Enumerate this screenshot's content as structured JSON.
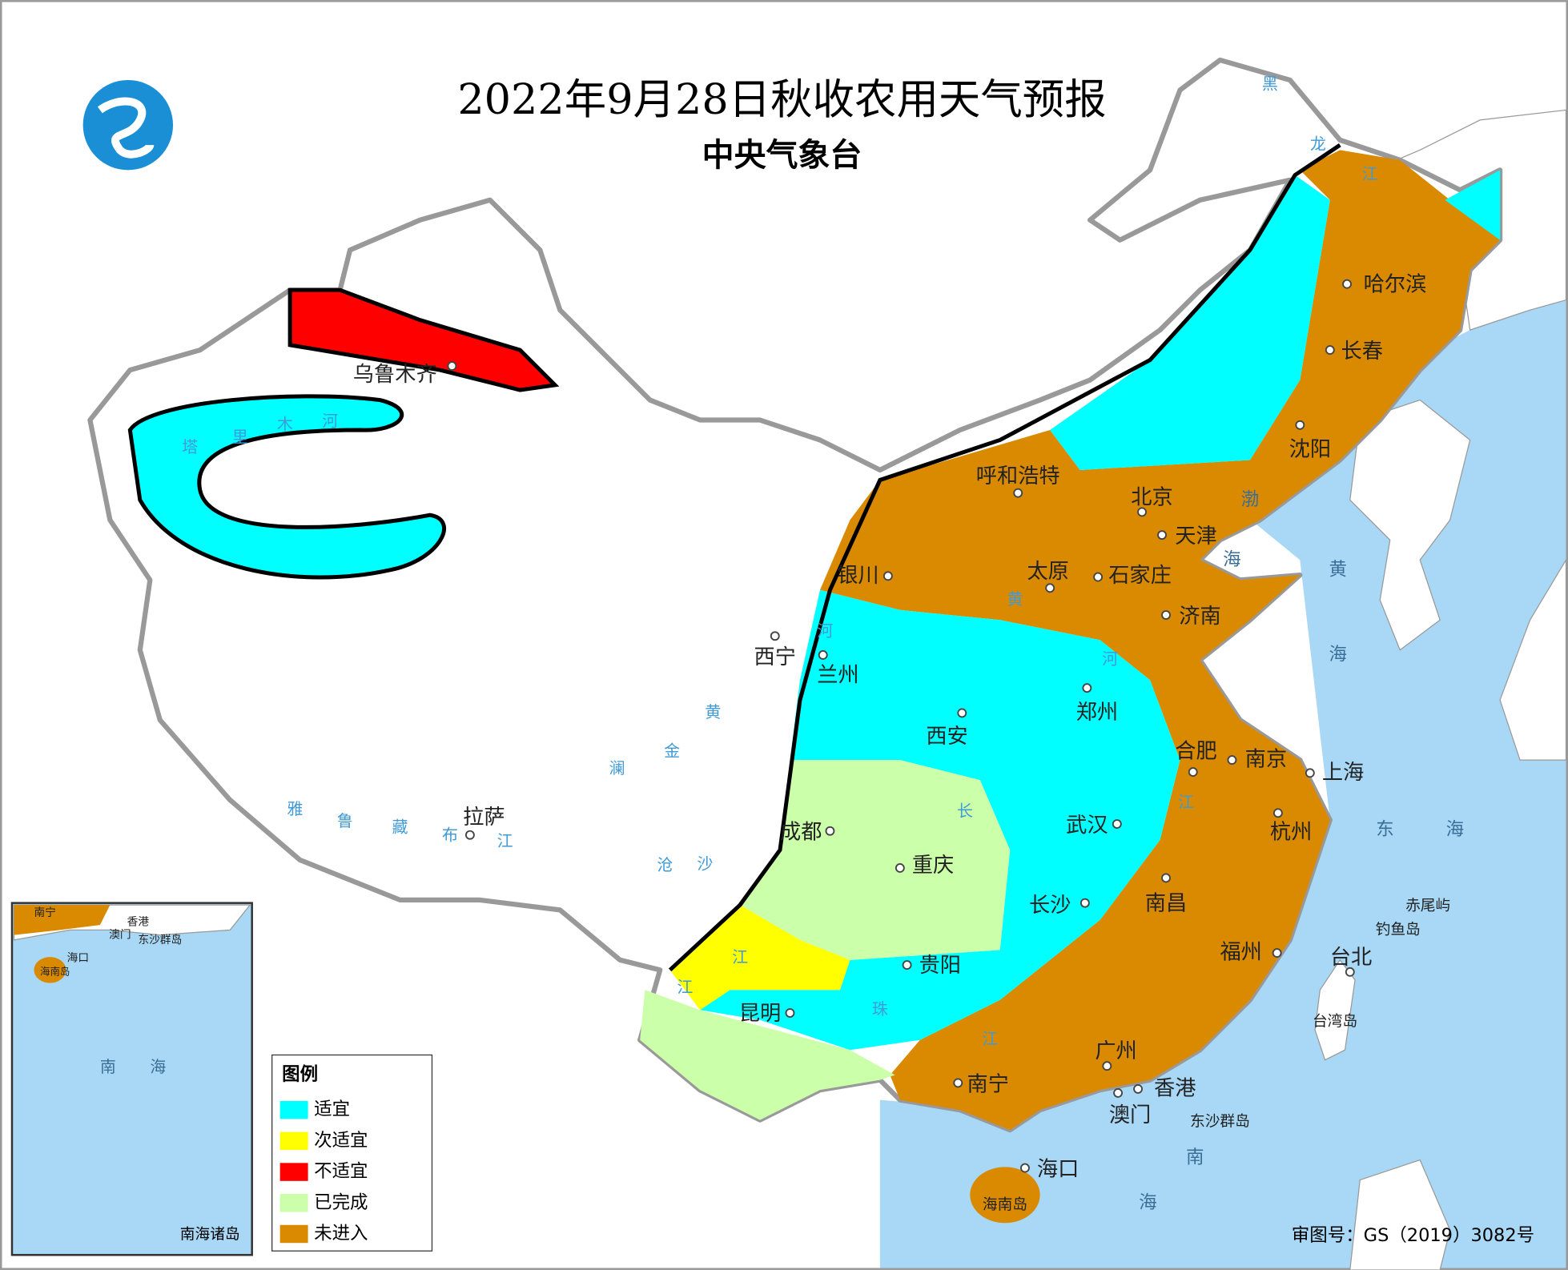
{
  "header": {
    "title": "2022年9月28日秋收农用天气预报",
    "subtitle": "中央气象台"
  },
  "legend": {
    "title": "图例",
    "items": [
      {
        "label": "适宜",
        "color": "#00ffff"
      },
      {
        "label": "次适宜",
        "color": "#ffff00"
      },
      {
        "label": "不适宜",
        "color": "#ff0000"
      },
      {
        "label": "已完成",
        "color": "#ccffaa"
      },
      {
        "label": "未进入",
        "color": "#d98a00"
      }
    ]
  },
  "cities": [
    "乌鲁木齐",
    "哈尔滨",
    "长春",
    "沈阳",
    "呼和浩特",
    "北京",
    "天津",
    "银川",
    "太原",
    "石家庄",
    "济南",
    "西宁",
    "兰州",
    "郑州",
    "西安",
    "合肥",
    "南京",
    "上海",
    "拉萨",
    "成都",
    "武汉",
    "杭州",
    "重庆",
    "长沙",
    "南昌",
    "福州",
    "台北",
    "贵阳",
    "昆明",
    "南宁",
    "广州",
    "香港",
    "澳门",
    "海口"
  ],
  "islands": [
    "海南岛",
    "台湾岛",
    "赤尾屿",
    "钓鱼岛",
    "东沙群岛"
  ],
  "rivers": [
    "塔",
    "里",
    "木",
    "河",
    "黑",
    "龙",
    "江",
    "雅",
    "鲁",
    "藏",
    "布",
    "江",
    "黄",
    "黄",
    "河",
    "河",
    "长",
    "江",
    "澜",
    "沧",
    "金",
    "沙",
    "江",
    "江",
    "珠",
    "江"
  ],
  "seas": [
    "渤",
    "海",
    "黄",
    "海",
    "东",
    "海",
    "南",
    "海"
  ],
  "inset": {
    "places": [
      "南宁",
      "香港",
      "澳门",
      "东沙群岛",
      "海口",
      "海南岛",
      "南",
      "海"
    ],
    "title": "南海诸岛"
  },
  "footer": {
    "approval": "审图号：GS（2019）3082号"
  }
}
